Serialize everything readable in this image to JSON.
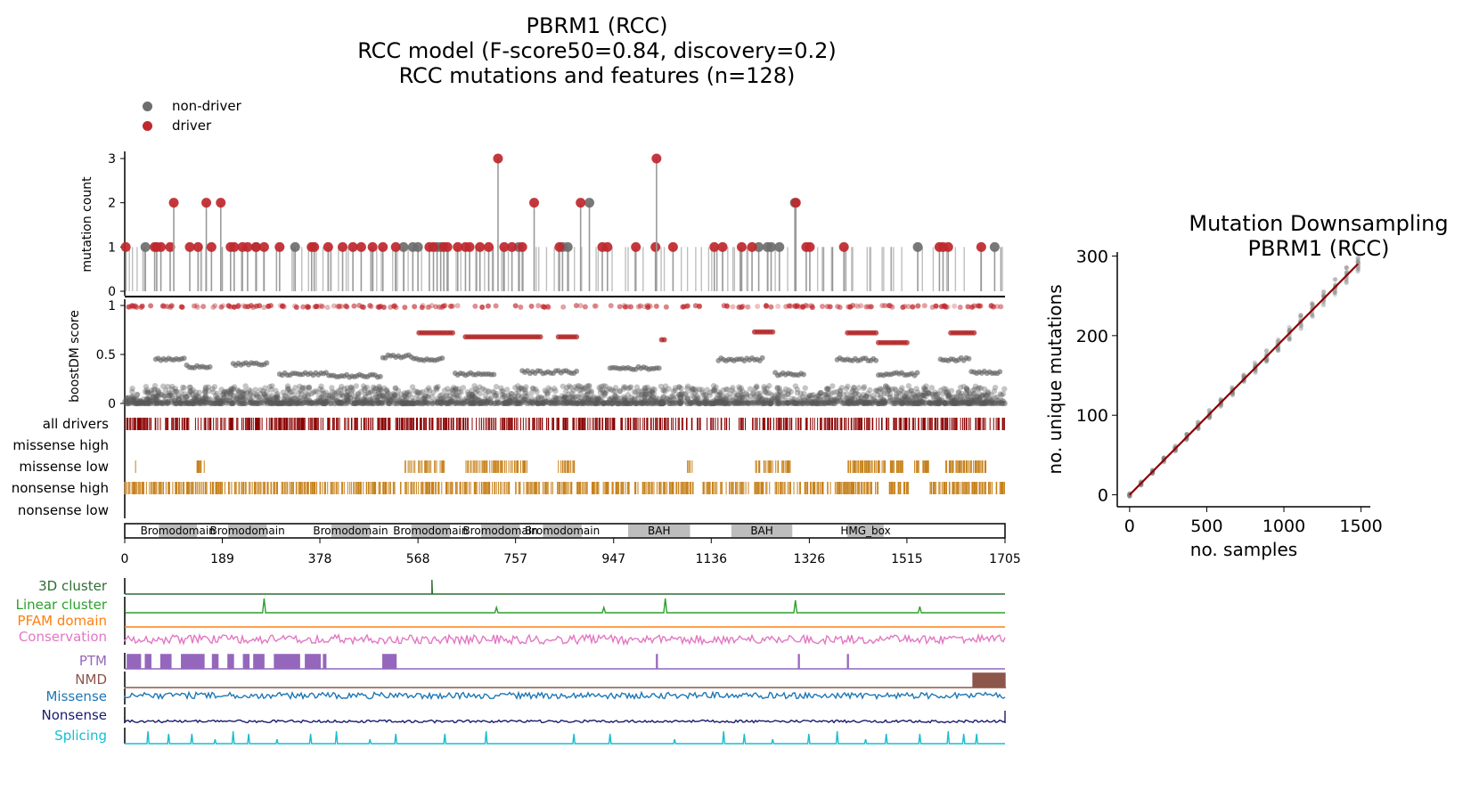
{
  "header": {
    "title_line1": "PBRM1 (RCC)",
    "title_line2": "RCC model (F-score50=0.84, discovery=0.2)",
    "title_line3": "RCC mutations and features (n=128)"
  },
  "legend": {
    "items": [
      {
        "label": "non-driver",
        "color": "#6e6e6e"
      },
      {
        "label": "driver",
        "color": "#c0282d"
      }
    ]
  },
  "chart_data": [
    {
      "type": "lollipop",
      "title": "PBRM1 (RCC)",
      "ylabel": "mutation count",
      "xlim": [
        0,
        1705
      ],
      "ylim": [
        0,
        3
      ],
      "yticks": [
        "0",
        "1",
        "2",
        "3"
      ],
      "x_ticks": [
        "0",
        "189",
        "378",
        "568",
        "757",
        "947",
        "1136",
        "1326",
        "1515",
        "1705"
      ],
      "drivers": [
        {
          "pos": 2,
          "count": 1
        },
        {
          "pos": 58,
          "count": 1
        },
        {
          "pos": 62,
          "count": 1
        },
        {
          "pos": 70,
          "count": 1
        },
        {
          "pos": 88,
          "count": 1
        },
        {
          "pos": 95,
          "count": 2
        },
        {
          "pos": 126,
          "count": 1
        },
        {
          "pos": 142,
          "count": 1
        },
        {
          "pos": 158,
          "count": 2
        },
        {
          "pos": 168,
          "count": 1
        },
        {
          "pos": 186,
          "count": 2
        },
        {
          "pos": 205,
          "count": 1
        },
        {
          "pos": 212,
          "count": 1
        },
        {
          "pos": 228,
          "count": 1
        },
        {
          "pos": 238,
          "count": 1
        },
        {
          "pos": 254,
          "count": 1
        },
        {
          "pos": 270,
          "count": 1
        },
        {
          "pos": 300,
          "count": 1
        },
        {
          "pos": 362,
          "count": 1
        },
        {
          "pos": 367,
          "count": 1
        },
        {
          "pos": 394,
          "count": 1
        },
        {
          "pos": 422,
          "count": 1
        },
        {
          "pos": 442,
          "count": 1
        },
        {
          "pos": 458,
          "count": 1
        },
        {
          "pos": 480,
          "count": 1
        },
        {
          "pos": 500,
          "count": 1
        },
        {
          "pos": 525,
          "count": 1
        },
        {
          "pos": 590,
          "count": 1
        },
        {
          "pos": 598,
          "count": 1
        },
        {
          "pos": 618,
          "count": 1
        },
        {
          "pos": 625,
          "count": 1
        },
        {
          "pos": 645,
          "count": 1
        },
        {
          "pos": 660,
          "count": 1
        },
        {
          "pos": 668,
          "count": 1
        },
        {
          "pos": 688,
          "count": 1
        },
        {
          "pos": 705,
          "count": 1
        },
        {
          "pos": 723,
          "count": 3
        },
        {
          "pos": 735,
          "count": 1
        },
        {
          "pos": 750,
          "count": 1
        },
        {
          "pos": 770,
          "count": 1
        },
        {
          "pos": 793,
          "count": 2
        },
        {
          "pos": 842,
          "count": 1
        },
        {
          "pos": 883,
          "count": 2
        },
        {
          "pos": 925,
          "count": 1
        },
        {
          "pos": 935,
          "count": 1
        },
        {
          "pos": 990,
          "count": 1
        },
        {
          "pos": 1028,
          "count": 1
        },
        {
          "pos": 1030,
          "count": 3
        },
        {
          "pos": 1062,
          "count": 1
        },
        {
          "pos": 1142,
          "count": 1
        },
        {
          "pos": 1158,
          "count": 1
        },
        {
          "pos": 1195,
          "count": 1
        },
        {
          "pos": 1215,
          "count": 1
        },
        {
          "pos": 1300,
          "count": 2
        },
        {
          "pos": 1320,
          "count": 1
        },
        {
          "pos": 1327,
          "count": 1
        },
        {
          "pos": 1393,
          "count": 1
        },
        {
          "pos": 1578,
          "count": 1
        },
        {
          "pos": 1585,
          "count": 1
        },
        {
          "pos": 1595,
          "count": 1
        },
        {
          "pos": 1659,
          "count": 1
        }
      ],
      "nondrivers": [
        {
          "pos": 40,
          "count": 1
        },
        {
          "pos": 255,
          "count": 1
        },
        {
          "pos": 330,
          "count": 1
        },
        {
          "pos": 540,
          "count": 1
        },
        {
          "pos": 558,
          "count": 1
        },
        {
          "pos": 568,
          "count": 1
        },
        {
          "pos": 605,
          "count": 1
        },
        {
          "pos": 612,
          "count": 1
        },
        {
          "pos": 763,
          "count": 1
        },
        {
          "pos": 848,
          "count": 1
        },
        {
          "pos": 858,
          "count": 1
        },
        {
          "pos": 900,
          "count": 2
        },
        {
          "pos": 1228,
          "count": 1
        },
        {
          "pos": 1245,
          "count": 1
        },
        {
          "pos": 1252,
          "count": 1
        },
        {
          "pos": 1268,
          "count": 1
        },
        {
          "pos": 1298,
          "count": 2
        },
        {
          "pos": 1536,
          "count": 1
        },
        {
          "pos": 1685,
          "count": 1
        }
      ]
    },
    {
      "type": "scatter",
      "ylabel": "boostDM score",
      "ylim": [
        0,
        1
      ],
      "yticks": [
        "0",
        "0.5",
        "1"
      ],
      "xlim": [
        0,
        1705
      ]
    },
    {
      "type": "raster",
      "tracks": [
        "all drivers",
        "missense high",
        "missense low",
        "nonsense high",
        "nonsense low"
      ],
      "colors": [
        "#8b0000",
        "#c7821d",
        "#c7821d",
        "#c7821d",
        "#c7821d"
      ]
    },
    {
      "type": "domains",
      "domains": [
        {
          "name": "Bromodomain",
          "start": 66,
          "end": 140
        },
        {
          "name": "Bromodomain",
          "start": 200,
          "end": 275
        },
        {
          "name": "Bromodomain",
          "start": 400,
          "end": 475
        },
        {
          "name": "Bromodomain",
          "start": 555,
          "end": 630
        },
        {
          "name": "Bromodomain",
          "start": 690,
          "end": 765
        },
        {
          "name": "Bromodomain",
          "start": 810,
          "end": 885
        },
        {
          "name": "BAH",
          "start": 975,
          "end": 1095
        },
        {
          "name": "BAH",
          "start": 1175,
          "end": 1293
        },
        {
          "name": "HMG_box",
          "start": 1400,
          "end": 1470
        }
      ]
    },
    {
      "type": "feature-tracks",
      "tracks": [
        {
          "label": "3D cluster",
          "color": "#2e6e34"
        },
        {
          "label": "Linear cluster",
          "color": "#2ca02c"
        },
        {
          "label": "PFAM domain",
          "color": "#ff7f0e"
        },
        {
          "label": "Conservation",
          "color": "#e377c2"
        },
        {
          "label": "PTM",
          "color": "#9467bd"
        },
        {
          "label": "NMD",
          "color": "#8c564b"
        },
        {
          "label": "Missense",
          "color": "#1f77b4"
        },
        {
          "label": "Nonsense",
          "color": "#1a1a6e"
        },
        {
          "label": "Splicing",
          "color": "#17becf"
        }
      ]
    },
    {
      "type": "scatter",
      "title": "Mutation Downsampling",
      "subtitle": "PBRM1 (RCC)",
      "xlabel": "no. samples",
      "ylabel": "no. unique mutations",
      "xlim": [
        -80,
        1560
      ],
      "ylim": [
        -15,
        305
      ],
      "xticks": [
        "0",
        "500",
        "1000",
        "1500"
      ],
      "yticks": [
        "0",
        "100",
        "200",
        "300"
      ],
      "fit_line": {
        "x": [
          0,
          1480
        ],
        "y": [
          0,
          290
        ],
        "color": "#8b0000"
      }
    }
  ]
}
